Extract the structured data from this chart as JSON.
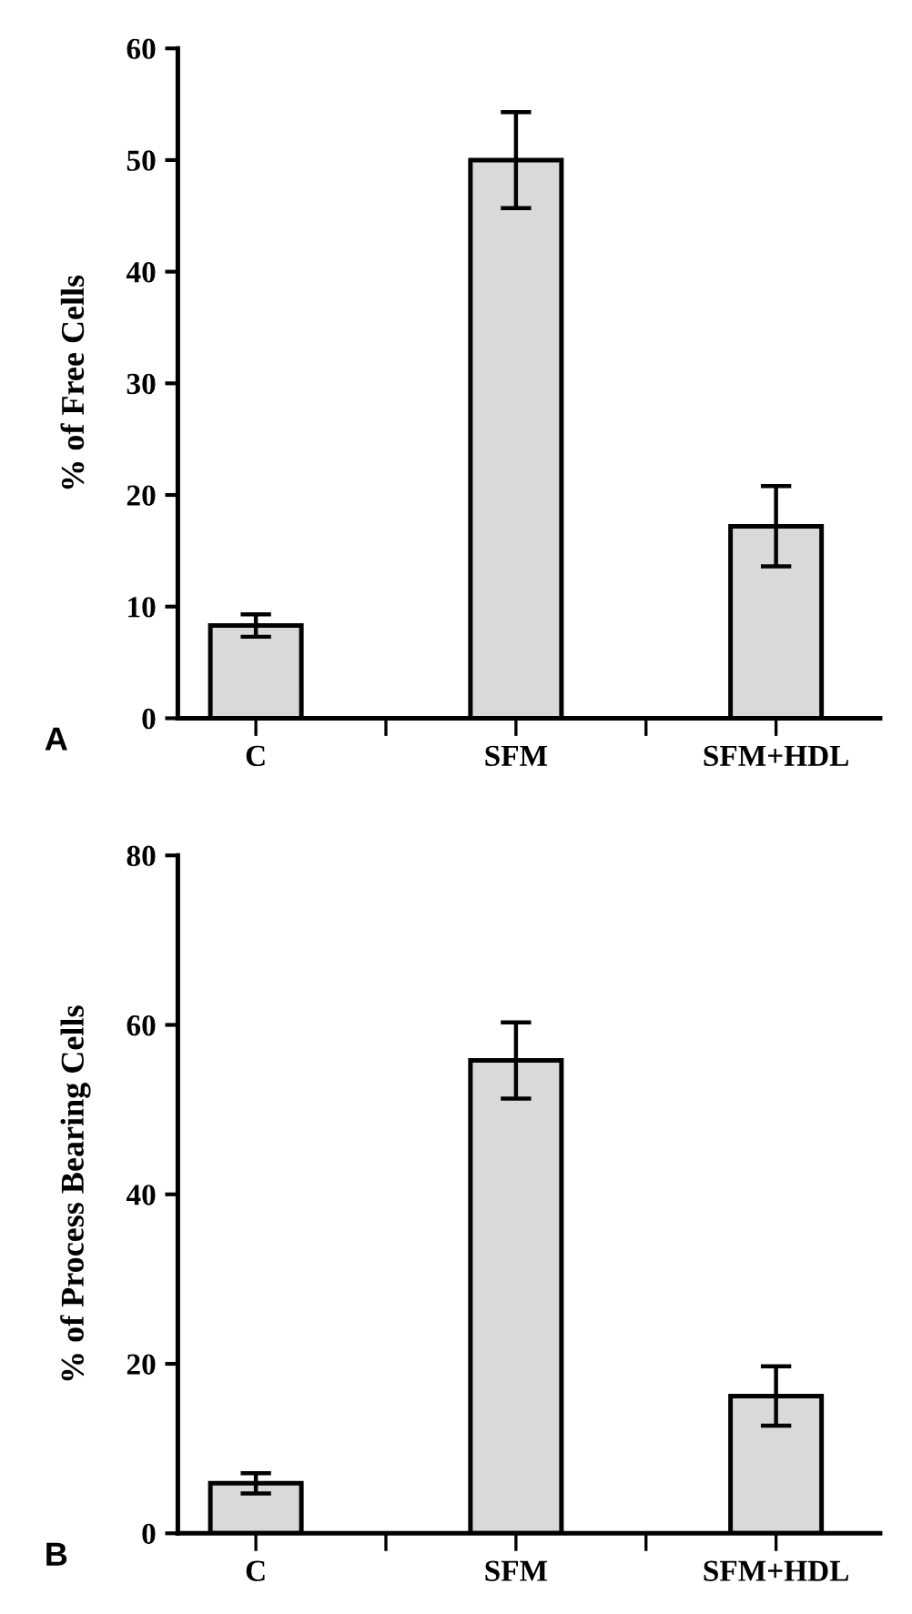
{
  "chart_data": [
    {
      "type": "bar",
      "ylabel": "% of Free Cells",
      "categories": [
        "C",
        "SFM",
        "SFM+HDL"
      ],
      "values": [
        8.3,
        50,
        17.2
      ],
      "errors": [
        1.0,
        4.3,
        3.6
      ],
      "color": "#d9d9d9",
      "ylim": [
        0,
        60
      ],
      "yticks": [
        0,
        10,
        20,
        30,
        40,
        50,
        60
      ],
      "grid": false,
      "annotations": [
        "A"
      ]
    },
    {
      "type": "bar",
      "ylabel": "% of Process Bearing Cells",
      "categories": [
        "C",
        "SFM",
        "SFM+HDL"
      ],
      "values": [
        5.9,
        55.8,
        16.2
      ],
      "errors": [
        1.2,
        4.5,
        3.5
      ],
      "color": "#d9d9d9",
      "ylim": [
        0,
        80
      ],
      "yticks": [
        0,
        20,
        40,
        60,
        80
      ],
      "grid": false,
      "annotations": [
        "B"
      ]
    }
  ]
}
